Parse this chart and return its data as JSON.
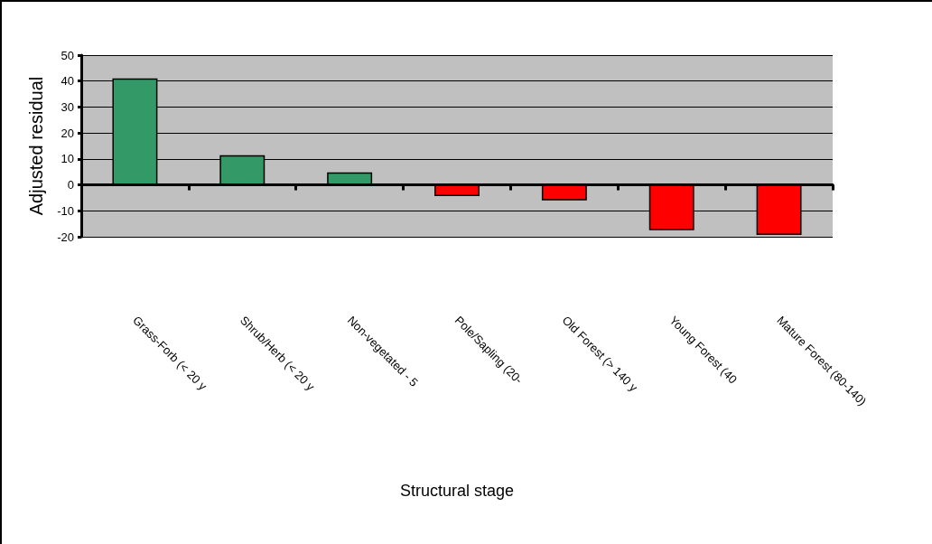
{
  "chart_data": {
    "type": "bar",
    "xlabel": "Structural stage",
    "ylabel": "Adjusted residual",
    "categories": [
      "Grass-Forb (< 20 y",
      "Shrub/Herb (< 20 y",
      "Non-vegetated - 5",
      "Pole/Sapling (20-",
      "Old Forest (> 140 y",
      "Young Forest (40",
      "Mature Forest (80-140)"
    ],
    "values": [
      41,
      11.4,
      4.8,
      -4.3,
      -6,
      -17.5,
      -19.3
    ],
    "colors": [
      "#339966",
      "#339966",
      "#339966",
      "#ff0000",
      "#ff0000",
      "#ff0000",
      "#ff0000"
    ],
    "ylim": [
      -20,
      50
    ],
    "yticks": [
      -20,
      -10,
      0,
      10,
      20,
      30,
      40,
      50
    ],
    "grid": "y"
  }
}
